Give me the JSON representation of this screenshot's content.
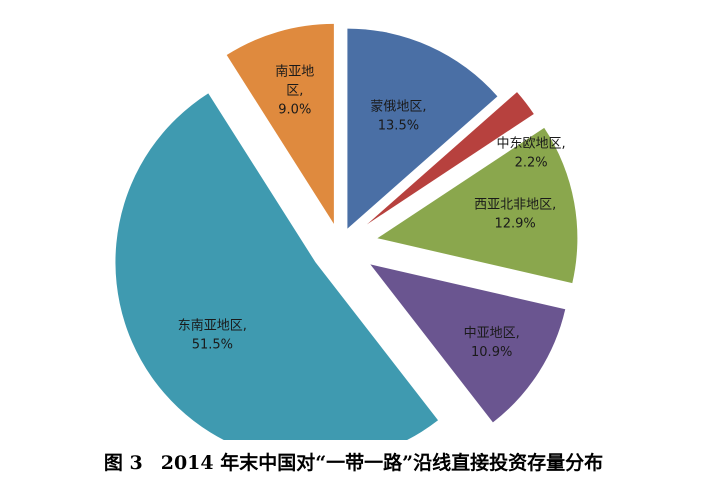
{
  "chart_data": {
    "type": "pie",
    "title": "",
    "slices": [
      {
        "label": "蒙俄地区,",
        "value_label": "13.5%",
        "value": 13.5,
        "color": "#4a6fa5"
      },
      {
        "label": "中东欧地区,",
        "value_label": "2.2%",
        "value": 2.2,
        "color": "#b7413e"
      },
      {
        "label": "西亚北非地区,",
        "value_label": "12.9%",
        "value": 12.9,
        "color": "#8aa74d"
      },
      {
        "label": "中亚地区,",
        "value_label": "10.9%",
        "value": 10.9,
        "color": "#6a5590"
      },
      {
        "label": "东南亚地区,",
        "value_label": "51.5%",
        "value": 51.5,
        "color": "#3f9ab0"
      },
      {
        "label": "南亚地",
        "label2": "区,",
        "value_label": "9.0%",
        "value": 9.0,
        "color": "#df8a3e"
      }
    ]
  },
  "caption": {
    "number": "图 3",
    "text": "2014 年末中国对“一带一路”沿线直接投资存量分布"
  }
}
